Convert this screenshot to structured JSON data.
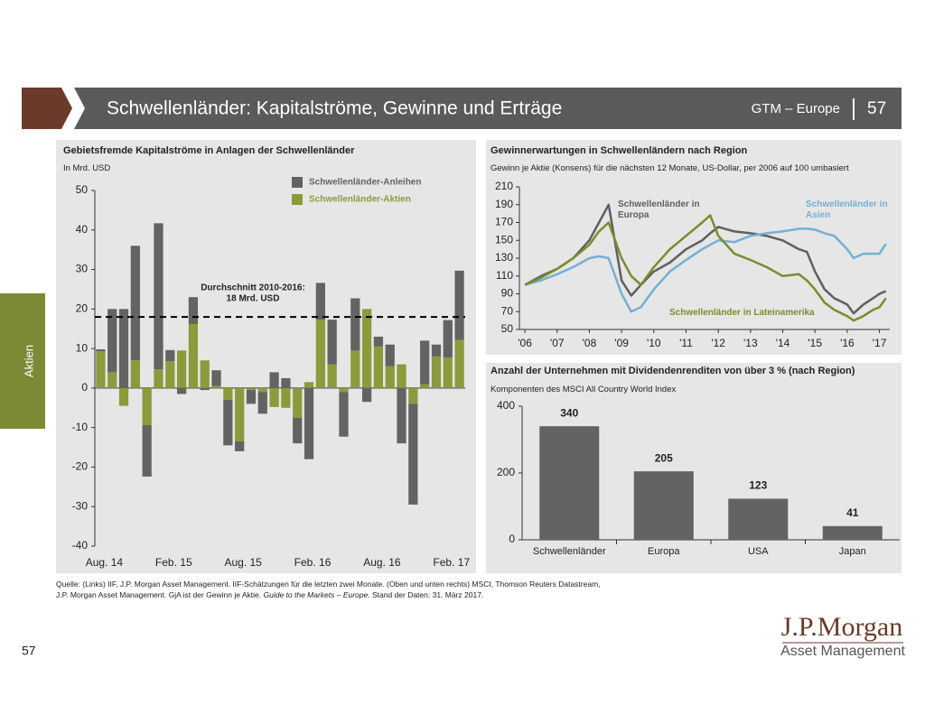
{
  "header": {
    "title": "Schwellenländer: Kapitalströme, Gewinne und Erträge",
    "region": "GTM – Europe",
    "page": "57"
  },
  "side_tab": "Aktien",
  "chart_data": [
    {
      "type": "bar",
      "stacked": true,
      "title": "Gebietsfremde Kapitalströme in Anlagen der Schwellenländer",
      "subtitle": "In Mrd. USD",
      "categories": [
        "Aug. 14",
        null,
        null,
        null,
        null,
        null,
        "Feb. 15",
        null,
        null,
        null,
        null,
        null,
        "Aug. 15",
        null,
        null,
        null,
        null,
        null,
        "Feb. 16",
        null,
        null,
        null,
        null,
        null,
        "Aug. 16",
        null,
        null,
        null,
        null,
        null,
        "Feb. 17",
        null
      ],
      "series": [
        {
          "name": "Schwellenländer-Anleihen",
          "color": "#636363",
          "values": [
            0.5,
            16,
            20,
            29,
            -13,
            37,
            2.8,
            -1.5,
            6.8,
            -0.5,
            4,
            -11.5,
            -2.5,
            -3.5,
            -5.5,
            4,
            2.5,
            -6.5,
            -18,
            9.3,
            11.3,
            -11.3,
            13.2,
            -3.5,
            2.5,
            5.5,
            -14,
            -25.5,
            11,
            3,
            9.5,
            17.5
          ]
        },
        {
          "name": "Schwellenländer-Aktien",
          "color": "#8c9a3c",
          "values": [
            9.3,
            4,
            -4.5,
            7,
            -9.4,
            4.7,
            6.8,
            9.5,
            16.2,
            7,
            0.5,
            -3,
            -13.5,
            -0.5,
            -1,
            -4.8,
            -5,
            -7.5,
            1.5,
            17.3,
            6,
            -1,
            9.5,
            20,
            10.5,
            5.5,
            6,
            -4,
            1,
            8,
            7.7,
            12.2
          ]
        }
      ],
      "ylim": [
        -40,
        50
      ],
      "yticks": [
        -40,
        -30,
        -20,
        -10,
        0,
        10,
        20,
        30,
        40,
        50
      ],
      "reference_line": {
        "value": 18,
        "label": [
          "Durchschnitt 2010-2016:",
          "18 Mrd. USD"
        ]
      }
    },
    {
      "type": "line",
      "title": "Gewinnerwartungen in Schwellenländern nach Region",
      "subtitle": "Gewinn je Aktie (Konsens) für die nächsten 12 Monate, US-Dollar, per 2006 auf 100 umbasiert",
      "x": [
        2006,
        2006.5,
        2007,
        2007.5,
        2008,
        2008.3,
        2008.6,
        2009,
        2009.3,
        2009.6,
        2010,
        2010.5,
        2011,
        2011.5,
        2011.75,
        2012,
        2012.5,
        2013,
        2013.5,
        2014,
        2014.5,
        2014.75,
        2015,
        2015.3,
        2015.6,
        2016,
        2016.2,
        2016.5,
        2016.8,
        2017,
        2017.2
      ],
      "series": [
        {
          "name": "Schwellenländer in Europa",
          "color": "#5f5f5f",
          "values": [
            100,
            110,
            118,
            130,
            150,
            170,
            190,
            105,
            88,
            100,
            115,
            125,
            140,
            150,
            158,
            165,
            160,
            158,
            155,
            150,
            140,
            137,
            115,
            95,
            85,
            78,
            68,
            78,
            85,
            90,
            93
          ]
        },
        {
          "name": "Schwellenländer in Asien",
          "color": "#74b0d2",
          "values": [
            100,
            105,
            112,
            120,
            130,
            132,
            130,
            90,
            70,
            75,
            95,
            115,
            128,
            140,
            145,
            150,
            148,
            155,
            158,
            160,
            163,
            163,
            162,
            158,
            155,
            140,
            130,
            135,
            135,
            135,
            146
          ]
        },
        {
          "name": "Schwellenländer in Lateinamerika",
          "color": "#7d8b2c",
          "values": [
            100,
            108,
            118,
            130,
            145,
            160,
            170,
            130,
            110,
            100,
            120,
            140,
            155,
            170,
            178,
            155,
            135,
            128,
            120,
            110,
            112,
            105,
            95,
            80,
            72,
            65,
            60,
            65,
            72,
            75,
            85
          ]
        }
      ],
      "xlim": [
        2005.83,
        2017.32
      ],
      "xticks": [
        {
          "value": 2006,
          "label": "'06"
        },
        {
          "value": 2007,
          "label": "'07"
        },
        {
          "value": 2008,
          "label": "'08"
        },
        {
          "value": 2009,
          "label": "'09"
        },
        {
          "value": 2010,
          "label": "'10"
        },
        {
          "value": 2011,
          "label": "'11"
        },
        {
          "value": 2012,
          "label": "'12"
        },
        {
          "value": 2013,
          "label": "'13"
        },
        {
          "value": 2014,
          "label": "'14"
        },
        {
          "value": 2015,
          "label": "'15"
        },
        {
          "value": 2016,
          "label": "'16"
        },
        {
          "value": 2017,
          "label": "'17"
        }
      ],
      "ylim": [
        50,
        210
      ],
      "yticks": [
        50,
        70,
        90,
        110,
        130,
        150,
        170,
        190,
        210
      ]
    },
    {
      "type": "bar",
      "title": "Anzahl der Unternehmen mit Dividendenrenditen von über 3 % (nach Region)",
      "subtitle": "Komponenten des MSCI All Country World Index",
      "categories": [
        "Schwellenländer",
        "Europa",
        "USA",
        "Japan"
      ],
      "values": [
        340,
        205,
        123,
        41
      ],
      "color": "#636363",
      "ylim": [
        0,
        400
      ],
      "yticks": [
        0,
        200,
        400
      ]
    }
  ],
  "footer": {
    "source": [
      "Quelle: (Links) IIF, J.P. Morgan Asset Management. IIF-Schätzungen für die letzten zwei Monate. (Oben und unten rechts) MSCI, Thomson Reuters Datastream,",
      [
        "J.P. Morgan Asset Management. GjA ist der Gewinn je Aktie.",
        "Guide to the Markets – Europe",
        ". Stand der Daten: 31. März 2017."
      ]
    ],
    "page_number": "57",
    "logo": "J.P.Morgan",
    "logo_sub": "Asset Management"
  }
}
